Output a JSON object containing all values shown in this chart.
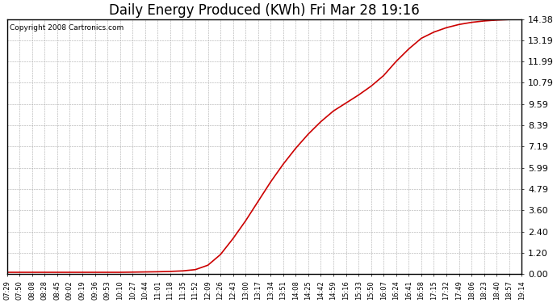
{
  "title": "Daily Energy Produced (KWh) Fri Mar 28 19:16",
  "copyright_text": "Copyright 2008 Cartronics.com",
  "line_color": "#cc0000",
  "bg_color": "#ffffff",
  "grid_color": "#aaaaaa",
  "yticks": [
    0.0,
    1.2,
    2.4,
    3.6,
    4.79,
    5.99,
    7.19,
    8.39,
    9.59,
    10.79,
    11.99,
    13.19,
    14.38
  ],
  "ylim": [
    0.0,
    14.38
  ],
  "x_labels": [
    "07:29",
    "07:50",
    "08:08",
    "08:28",
    "08:45",
    "09:02",
    "09:19",
    "09:36",
    "09:53",
    "10:10",
    "10:27",
    "10:44",
    "11:01",
    "11:18",
    "11:35",
    "11:52",
    "12:09",
    "12:26",
    "12:43",
    "13:00",
    "13:17",
    "13:34",
    "13:51",
    "14:08",
    "14:25",
    "14:42",
    "14:59",
    "15:16",
    "15:33",
    "15:50",
    "16:07",
    "16:24",
    "16:41",
    "16:58",
    "17:15",
    "17:32",
    "17:49",
    "18:06",
    "18:23",
    "18:40",
    "18:57",
    "19:14"
  ],
  "y_values": [
    0.1,
    0.1,
    0.1,
    0.1,
    0.1,
    0.1,
    0.1,
    0.1,
    0.1,
    0.1,
    0.11,
    0.12,
    0.13,
    0.15,
    0.18,
    0.25,
    0.5,
    1.1,
    2.0,
    3.0,
    4.1,
    5.2,
    6.2,
    7.1,
    7.9,
    8.6,
    9.2,
    9.65,
    10.1,
    10.6,
    11.2,
    12.0,
    12.7,
    13.3,
    13.65,
    13.9,
    14.08,
    14.2,
    14.28,
    14.33,
    14.36,
    14.38
  ],
  "title_fontsize": 12,
  "ylabel_fontsize": 8,
  "xlabel_fontsize": 6,
  "fig_width": 6.9,
  "fig_height": 3.75,
  "dpi": 100
}
